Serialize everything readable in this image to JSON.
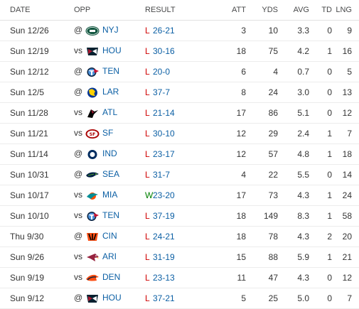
{
  "headers": {
    "date": "DATE",
    "opp": "OPP",
    "result": "RESULT",
    "att": "ATT",
    "yds": "YDS",
    "avg": "AVG",
    "td": "TD",
    "lng": "LNG"
  },
  "rows": [
    {
      "date": "Sun 12/26",
      "prefix": "@",
      "team": "NYJ",
      "logo": "jets-logo-icon",
      "wl": "L",
      "score": "26-21",
      "att": "3",
      "yds": "10",
      "avg": "3.3",
      "td": "0",
      "lng": "9"
    },
    {
      "date": "Sun 12/19",
      "prefix": "vs",
      "team": "HOU",
      "logo": "texans-logo-icon",
      "wl": "L",
      "score": "30-16",
      "att": "18",
      "yds": "75",
      "avg": "4.2",
      "td": "1",
      "lng": "16"
    },
    {
      "date": "Sun 12/12",
      "prefix": "@",
      "team": "TEN",
      "logo": "titans-logo-icon",
      "wl": "L",
      "score": "20-0",
      "att": "6",
      "yds": "4",
      "avg": "0.7",
      "td": "0",
      "lng": "5"
    },
    {
      "date": "Sun 12/5",
      "prefix": "@",
      "team": "LAR",
      "logo": "rams-logo-icon",
      "wl": "L",
      "score": "37-7",
      "att": "8",
      "yds": "24",
      "avg": "3.0",
      "td": "0",
      "lng": "13"
    },
    {
      "date": "Sun 11/28",
      "prefix": "vs",
      "team": "ATL",
      "logo": "falcons-logo-icon",
      "wl": "L",
      "score": "21-14",
      "att": "17",
      "yds": "86",
      "avg": "5.1",
      "td": "0",
      "lng": "12"
    },
    {
      "date": "Sun 11/21",
      "prefix": "vs",
      "team": "SF",
      "logo": "49ers-logo-icon",
      "wl": "L",
      "score": "30-10",
      "att": "12",
      "yds": "29",
      "avg": "2.4",
      "td": "1",
      "lng": "7"
    },
    {
      "date": "Sun 11/14",
      "prefix": "@",
      "team": "IND",
      "logo": "colts-logo-icon",
      "wl": "L",
      "score": "23-17",
      "att": "12",
      "yds": "57",
      "avg": "4.8",
      "td": "1",
      "lng": "18"
    },
    {
      "date": "Sun 10/31",
      "prefix": "@",
      "team": "SEA",
      "logo": "seahawks-logo-icon",
      "wl": "L",
      "score": "31-7",
      "att": "4",
      "yds": "22",
      "avg": "5.5",
      "td": "0",
      "lng": "14"
    },
    {
      "date": "Sun 10/17",
      "prefix": "vs",
      "team": "MIA",
      "logo": "dolphins-logo-icon",
      "wl": "W",
      "score": "23-20",
      "att": "17",
      "yds": "73",
      "avg": "4.3",
      "td": "1",
      "lng": "24"
    },
    {
      "date": "Sun 10/10",
      "prefix": "vs",
      "team": "TEN",
      "logo": "titans-logo-icon",
      "wl": "L",
      "score": "37-19",
      "att": "18",
      "yds": "149",
      "avg": "8.3",
      "td": "1",
      "lng": "58"
    },
    {
      "date": "Thu 9/30",
      "prefix": "@",
      "team": "CIN",
      "logo": "bengals-logo-icon",
      "wl": "L",
      "score": "24-21",
      "att": "18",
      "yds": "78",
      "avg": "4.3",
      "td": "2",
      "lng": "20"
    },
    {
      "date": "Sun 9/26",
      "prefix": "vs",
      "team": "ARI",
      "logo": "cardinals-logo-icon",
      "wl": "L",
      "score": "31-19",
      "att": "15",
      "yds": "88",
      "avg": "5.9",
      "td": "1",
      "lng": "21"
    },
    {
      "date": "Sun 9/19",
      "prefix": "vs",
      "team": "DEN",
      "logo": "broncos-logo-icon",
      "wl": "L",
      "score": "23-13",
      "att": "11",
      "yds": "47",
      "avg": "4.3",
      "td": "0",
      "lng": "12"
    },
    {
      "date": "Sun 9/12",
      "prefix": "@",
      "team": "HOU",
      "logo": "texans-logo-icon",
      "wl": "L",
      "score": "37-21",
      "att": "5",
      "yds": "25",
      "avg": "5.0",
      "td": "0",
      "lng": "7"
    }
  ],
  "colors": {
    "loss": "#d00000",
    "win": "#008000",
    "link": "#0b5fa4"
  }
}
